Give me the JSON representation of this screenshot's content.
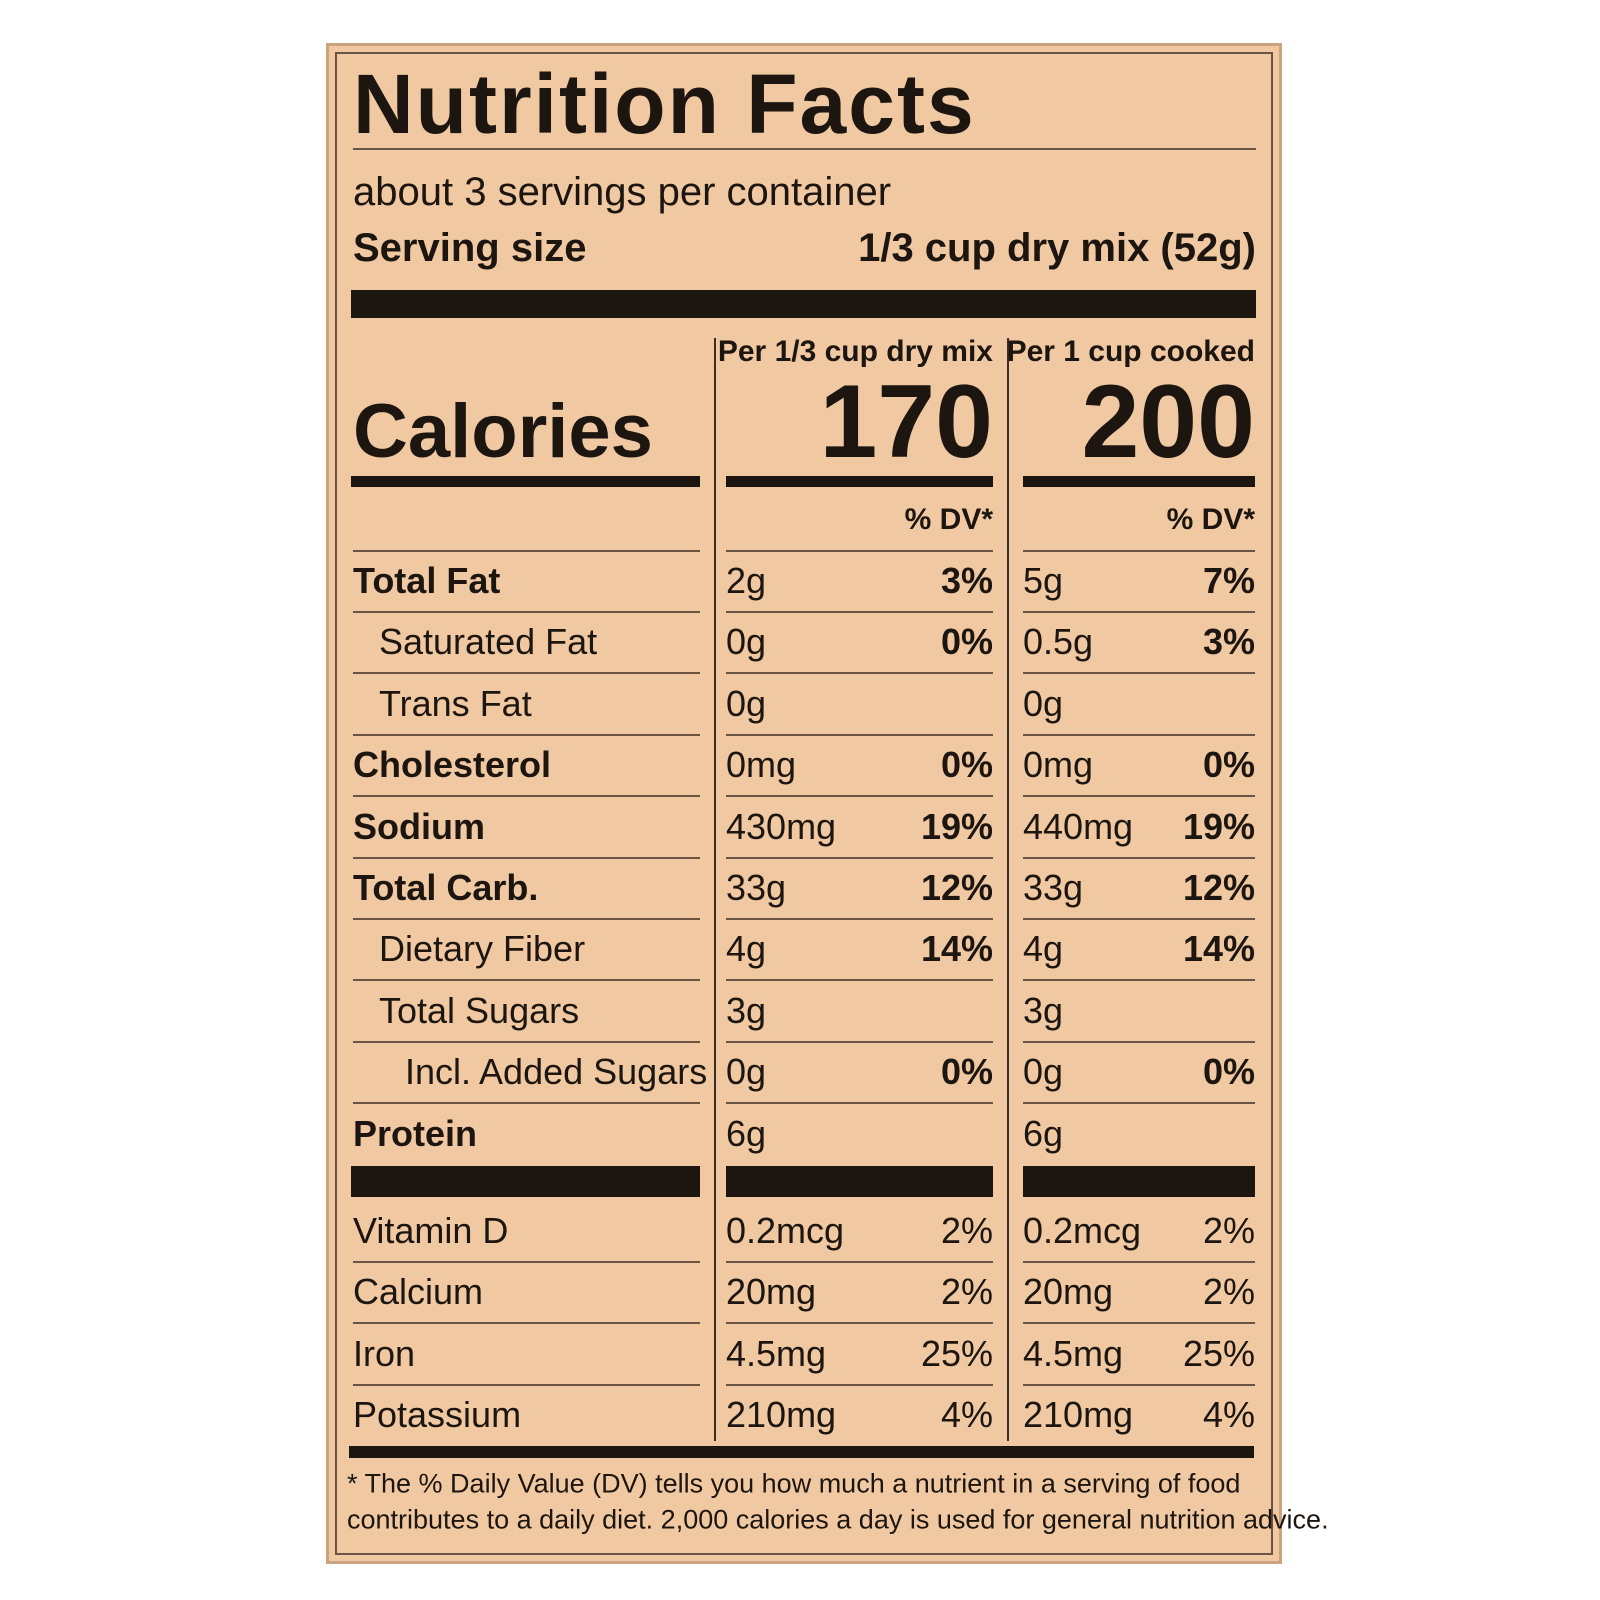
{
  "title": "Nutrition Facts",
  "servings": "about 3 servings per container",
  "serving_size": {
    "label": "Serving size",
    "value": "1/3 cup dry mix (52g)"
  },
  "calories_label": "Calories",
  "columns": [
    {
      "header": "Per 1/3 cup dry mix",
      "calories": 170,
      "dv_header": "% DV*"
    },
    {
      "header": "Per 1 cup cooked",
      "calories": 200,
      "dv_header": "% DV*"
    }
  ],
  "nutrients": [
    {
      "name": "Total Fat",
      "values": [
        {
          "amount": "2g",
          "dv": "3%"
        },
        {
          "amount": "5g",
          "dv": "7%"
        }
      ]
    },
    {
      "name": "Saturated Fat",
      "values": [
        {
          "amount": "0g",
          "dv": "0%"
        },
        {
          "amount": "0.5g",
          "dv": "3%"
        }
      ]
    },
    {
      "name": "Trans Fat",
      "values": [
        {
          "amount": "0g"
        },
        {
          "amount": "0g"
        }
      ]
    },
    {
      "name": "Cholesterol",
      "values": [
        {
          "amount": "0mg",
          "dv": "0%"
        },
        {
          "amount": "0mg",
          "dv": "0%"
        }
      ]
    },
    {
      "name": "Sodium",
      "values": [
        {
          "amount": "430mg",
          "dv": "19%"
        },
        {
          "amount": "440mg",
          "dv": "19%"
        }
      ]
    },
    {
      "name": "Total Carb.",
      "values": [
        {
          "amount": "33g",
          "dv": "12%"
        },
        {
          "amount": "33g",
          "dv": "12%"
        }
      ]
    },
    {
      "name": "Dietary Fiber",
      "values": [
        {
          "amount": "4g",
          "dv": "14%"
        },
        {
          "amount": "4g",
          "dv": "14%"
        }
      ]
    },
    {
      "name": "Total Sugars",
      "values": [
        {
          "amount": "3g"
        },
        {
          "amount": "3g"
        }
      ]
    },
    {
      "name": "Incl. Added Sugars",
      "values": [
        {
          "amount": "0g",
          "dv": "0%"
        },
        {
          "amount": "0g",
          "dv": "0%"
        }
      ]
    },
    {
      "name": "Protein",
      "values": [
        {
          "amount": "6g"
        },
        {
          "amount": "6g"
        }
      ]
    }
  ],
  "vitamins": [
    {
      "name": "Vitamin D",
      "values": [
        {
          "amount": "0.2mcg",
          "dv": "2%"
        },
        {
          "amount": "0.2mcg",
          "dv": "2%"
        }
      ]
    },
    {
      "name": "Calcium",
      "values": [
        {
          "amount": "20mg",
          "dv": "2%"
        },
        {
          "amount": "20mg",
          "dv": "2%"
        }
      ]
    },
    {
      "name": "Iron",
      "values": [
        {
          "amount": "4.5mg",
          "dv": "25%"
        },
        {
          "amount": "4.5mg",
          "dv": "25%"
        }
      ]
    },
    {
      "name": "Potassium",
      "values": [
        {
          "amount": "210mg",
          "dv": "4%"
        },
        {
          "amount": "210mg",
          "dv": "4%"
        }
      ]
    }
  ],
  "footnote": [
    "* The % Daily Value (DV) tells you how much a nutrient in a serving of food",
    "contributes to a daily diet. 2,000 calories a day is used for general nutrition advice."
  ]
}
